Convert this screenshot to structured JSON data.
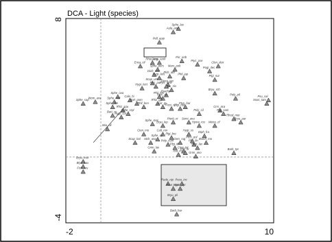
{
  "chart_data": {
    "type": "scatter",
    "title": "DCA - Light (species)",
    "xlim": [
      -2,
      10
    ],
    "ylim": [
      -4,
      8
    ],
    "x_tick_labels": [
      "-2",
      "10"
    ],
    "y_tick_labels": [
      "8",
      "-4"
    ],
    "marker": "triangle",
    "colors": {
      "marker_fill": "#8c8c8c",
      "marker_stroke": "#1a1a1a",
      "highlight_fill": "#e8e8e8"
    },
    "points": [
      {
        "label": "Sphe_lax",
        "x": 4.5,
        "y": 7.4
      },
      {
        "label": "Aula_and",
        "x": 4.2,
        "y": 7.2
      },
      {
        "label": "Pell_epip",
        "x": 3.4,
        "y": 6.6
      },
      {
        "label": "Rhiz_ang",
        "x": 3.0,
        "y": 5.4
      },
      {
        "label": "Dicra_tenh",
        "x": 3.4,
        "y": 5.4
      },
      {
        "label": "Pirr_orth",
        "x": 4.7,
        "y": 5.5
      },
      {
        "label": "Enca_cil",
        "x": 2.3,
        "y": 5.2
      },
      {
        "label": "Sphe_pers",
        "x": 3.3,
        "y": 5.0
      },
      {
        "label": "Mars_polt",
        "x": 4.3,
        "y": 5.0
      },
      {
        "label": "Ptyc_pse",
        "x": 5.6,
        "y": 5.3
      },
      {
        "label": "Clon_den",
        "x": 6.8,
        "y": 5.2
      },
      {
        "label": "Pogi_dec",
        "x": 6.3,
        "y": 4.9
      },
      {
        "label": "Plch_abt",
        "x": 4.0,
        "y": 4.6
      },
      {
        "label": "Dich_enc",
        "x": 3.1,
        "y": 4.7
      },
      {
        "label": "Hygr_lect",
        "x": 3.4,
        "y": 4.5
      },
      {
        "label": "Phil_jap",
        "x": 4.8,
        "y": 4.5
      },
      {
        "label": "Plgi_nut",
        "x": 6.6,
        "y": 4.4
      },
      {
        "label": "Scap_unt",
        "x": 3.0,
        "y": 4.2
      },
      {
        "label": "Dicra_jap",
        "x": 3.9,
        "y": 4.1
      },
      {
        "label": "Hygr_lect",
        "x": 2.4,
        "y": 3.9
      },
      {
        "label": "Fiss_pul",
        "x": 3.2,
        "y": 4.0
      },
      {
        "label": "Ptyc_nis",
        "x": 4.1,
        "y": 3.8
      },
      {
        "label": "Pyrr_atra",
        "x": 3.8,
        "y": 4.0
      },
      {
        "label": "Sphe_ova",
        "x": 1.0,
        "y": 3.4
      },
      {
        "label": "Wom_ava",
        "x": -0.3,
        "y": 3.1
      },
      {
        "label": "Sphe_cap",
        "x": -1.0,
        "y": 3.0
      },
      {
        "label": "Sphe_mol",
        "x": 0.8,
        "y": 3.1
      },
      {
        "label": "Calo_hi",
        "x": 1.7,
        "y": 3.2
      },
      {
        "label": "Phil_fon",
        "x": 3.4,
        "y": 3.4
      },
      {
        "label": "Brachy",
        "x": 3.8,
        "y": 3.5
      },
      {
        "label": "Ptyc_sp",
        "x": 3.6,
        "y": 3.3
      },
      {
        "label": "Bryu_rch",
        "x": 6.6,
        "y": 3.6
      },
      {
        "label": "Poly_pil",
        "x": 7.8,
        "y": 3.3
      },
      {
        "label": "Psu_cal",
        "x": 9.7,
        "y": 3.2
      },
      {
        "label": "Snac_tam",
        "x": 9.6,
        "y": 3.0
      },
      {
        "label": "Sphe_fim",
        "x": 0.7,
        "y": 2.8
      },
      {
        "label": "Rhiz_squ",
        "x": 1.3,
        "y": 2.6
      },
      {
        "label": "Bart_pom",
        "x": 2.1,
        "y": 3.0
      },
      {
        "label": "Phil_bnn",
        "x": 2.5,
        "y": 2.8
      },
      {
        "label": "Rhiz_gyr",
        "x": 3.3,
        "y": 3.0
      },
      {
        "label": "Isot_gy",
        "x": 3.6,
        "y": 2.8
      },
      {
        "label": "Plgi_rad",
        "x": 4.6,
        "y": 2.7
      },
      {
        "label": "Fissi_sp",
        "x": 4.1,
        "y": 2.7
      },
      {
        "label": "Ptyc_bar",
        "x": 4.9,
        "y": 2.8
      },
      {
        "label": "Crrs_aca",
        "x": 6.9,
        "y": 2.6
      },
      {
        "label": "Plgi_cam",
        "x": 7.1,
        "y": 2.4
      },
      {
        "label": "Sphe_crpl",
        "x": 1.6,
        "y": 2.4
      },
      {
        "label": "Hygr_cur",
        "x": 1.2,
        "y": 2.2
      },
      {
        "label": "Bart_sp",
        "x": 0.7,
        "y": 2.3
      },
      {
        "label": "Poly_cil",
        "x": 5.7,
        "y": 2.4
      },
      {
        "label": "Rhod_mor",
        "x": 7.7,
        "y": 2.1
      },
      {
        "label": "Bryu_par",
        "x": 8.1,
        "y": 1.9
      },
      {
        "label": "Sphe_tosc",
        "x": 3.0,
        "y": 1.8
      },
      {
        "label": "Bryu_lep",
        "x": 3.6,
        "y": 1.7
      },
      {
        "label": "Pterb_ni",
        "x": 4.2,
        "y": 1.9
      },
      {
        "label": "Semi_ana",
        "x": 5.1,
        "y": 1.9
      },
      {
        "label": "Hyme_ros",
        "x": 5.7,
        "y": 1.7
      },
      {
        "label": "Weiss_cf",
        "x": 6.6,
        "y": 1.7
      },
      {
        "label": "Stia_oli",
        "x": 0.4,
        "y": 1.5
      },
      {
        "label": "Cten_mo",
        "x": 2.5,
        "y": 1.2
      },
      {
        "label": "Calt_ron",
        "x": 3.6,
        "y": 1.2
      },
      {
        "label": "Plgi_bre",
        "x": 4.1,
        "y": 1.0
      },
      {
        "label": "Hygr_ss",
        "x": 5.1,
        "y": 1.2
      },
      {
        "label": "Diph_fra",
        "x": 6.0,
        "y": 1.1
      },
      {
        "label": "Sphe_sp",
        "x": 3.3,
        "y": 0.9
      },
      {
        "label": "Scap_bol",
        "x": 2.0,
        "y": 0.7
      },
      {
        "label": "Plgi_fin",
        "x": 5.4,
        "y": 0.6
      },
      {
        "label": "Cten_rug",
        "x": 4.6,
        "y": 0.7
      },
      {
        "label": "Stch_ava",
        "x": 2.9,
        "y": 0.7
      },
      {
        "label": "Ptch_pol",
        "x": 5.3,
        "y": 0.8
      },
      {
        "label": "Brach_mo",
        "x": 6.1,
        "y": 0.7
      },
      {
        "label": "Poly_com",
        "x": 3.9,
        "y": 0.6
      },
      {
        "label": "Plgi_itf",
        "x": 4.3,
        "y": 0.4
      },
      {
        "label": "Grim_lax",
        "x": 3.1,
        "y": 0.2
      },
      {
        "label": "Cten_tot",
        "x": 4.8,
        "y": 0.2
      },
      {
        "label": "Hygr_lax",
        "x": 5.6,
        "y": 0.4
      },
      {
        "label": "Phil_hr",
        "x": 4.9,
        "y": 0.1
      },
      {
        "label": "Grim_ano",
        "x": 5.5,
        "y": -0.1
      },
      {
        "label": "Barb_tyc",
        "x": 7.7,
        "y": 0.1
      },
      {
        "label": "Isot_irs",
        "x": 4.5,
        "y": 0.0
      },
      {
        "label": "Bryu_mor",
        "x": -1.0,
        "y": -0.4
      },
      {
        "label": "Blyd_kau",
        "x": -1.0,
        "y": -0.7
      },
      {
        "label": "Fish_cru",
        "x": -1.0,
        "y": -1.0
      },
      {
        "label": "Rudo_nip",
        "x": 3.9,
        "y": -1.7
      },
      {
        "label": "Poso_inc",
        "x": 4.7,
        "y": -1.7
      },
      {
        "label": "Pour_atro",
        "x": 4.2,
        "y": -2.0
      },
      {
        "label": "Hypn_pyr",
        "x": 4.6,
        "y": -2.0
      },
      {
        "label": "Bryu_pli",
        "x": 4.2,
        "y": -2.6
      },
      {
        "label": "Barb_har",
        "x": 4.4,
        "y": -3.5
      }
    ]
  }
}
